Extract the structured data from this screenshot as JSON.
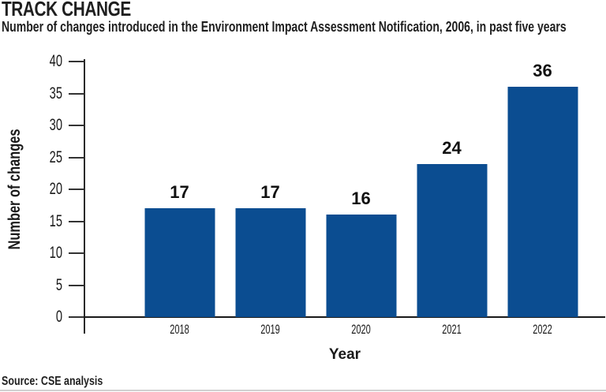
{
  "header": {
    "title": "TRACK CHANGE",
    "subtitle": "Number of changes introduced in the Environment Impact Assessment Notification, 2006, in past five years"
  },
  "source": "Source: CSE analysis",
  "colors": {
    "bar": "#0B4D91",
    "axis": "#1a1a1a",
    "text": "#1a1a1a",
    "divider": "#d0d0d0"
  },
  "chart_data": {
    "type": "bar",
    "title": "TRACK CHANGE",
    "subtitle": "Number of changes introduced in the Environment Impact Assessment Notification, 2006, in past five years",
    "categories": [
      "2018",
      "2019",
      "2020",
      "2021",
      "2022"
    ],
    "values": [
      17,
      17,
      16,
      24,
      36
    ],
    "xlabel": "Year",
    "ylabel": "Number of changes",
    "ylim": [
      0,
      40
    ],
    "yticks": [
      0,
      5,
      10,
      15,
      20,
      25,
      30,
      35,
      40
    ],
    "grid": false,
    "legend": "none",
    "bar_labels": true,
    "source": "Source: CSE analysis"
  }
}
